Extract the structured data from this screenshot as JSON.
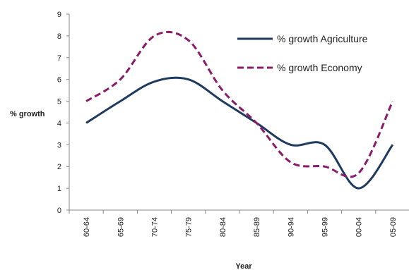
{
  "chart_data": {
    "type": "line",
    "title": "",
    "xlabel": "Year",
    "ylabel": "% growth",
    "categories": [
      "60-64",
      "65-69",
      "70-74",
      "75-79",
      "80-84",
      "85-89",
      "90-94",
      "95-99",
      "00-04",
      "05-09"
    ],
    "ylim": [
      0,
      9
    ],
    "yticks": [
      "0",
      "1",
      "2",
      "3",
      "4",
      "5",
      "6",
      "7",
      "8",
      "9"
    ],
    "grid": false,
    "legend_position": "top-right",
    "series": [
      {
        "name": "% growth Agriculture",
        "values": [
          4,
          5,
          5.9,
          6,
          5,
          4,
          3,
          3,
          1,
          3
        ],
        "color": "#1f3a5f",
        "dash": "solid"
      },
      {
        "name": "% growth Economy",
        "values": [
          5,
          6,
          8,
          7.8,
          5.5,
          4,
          2.2,
          2,
          1.7,
          5
        ],
        "color": "#8b1a6b",
        "dash": "dashed"
      }
    ]
  }
}
